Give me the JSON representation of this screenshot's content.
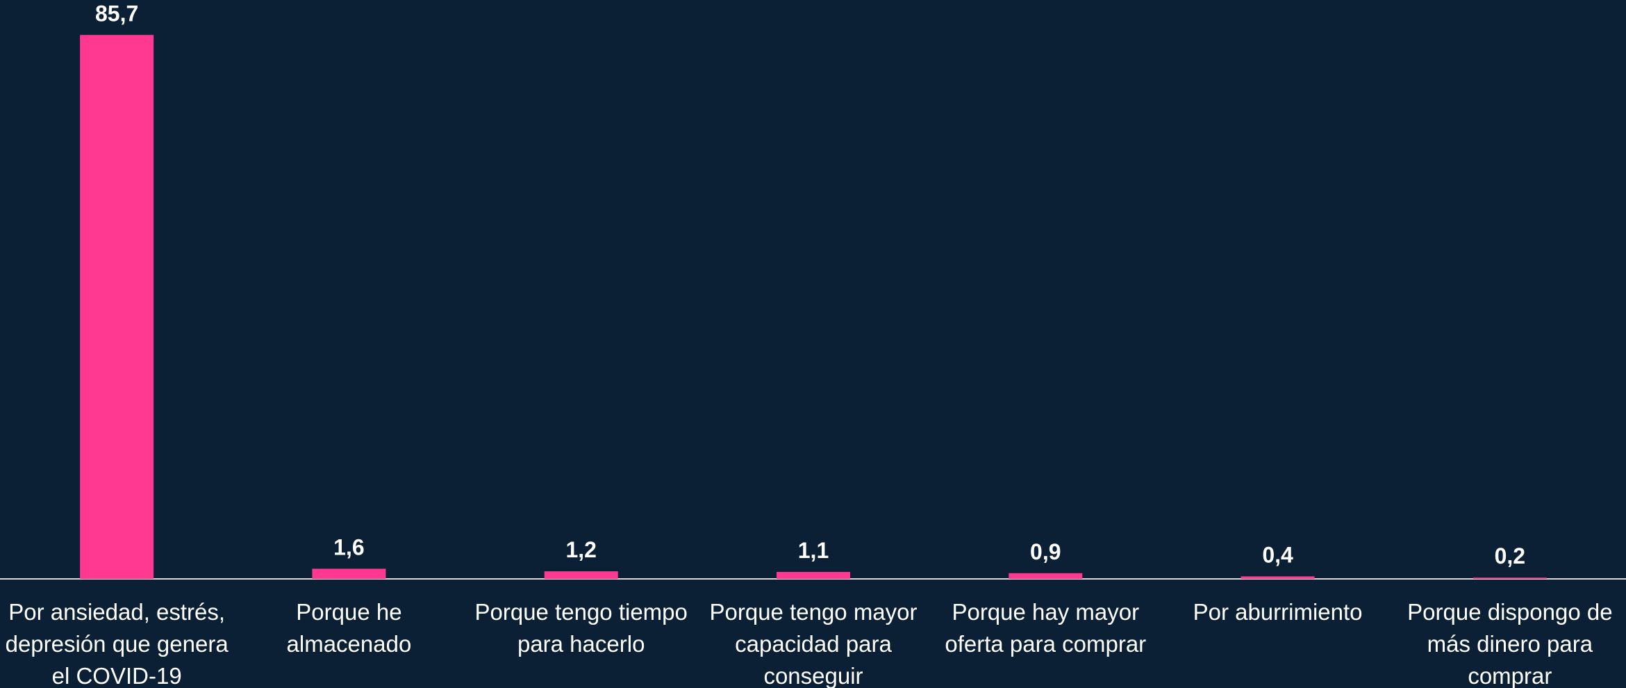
{
  "chart_data": {
    "type": "bar",
    "categories": [
      "Por ansiedad, estrés, depresión que genera el COVID-19",
      "Porque he almacenado",
      "Porque tengo tiempo para hacerlo",
      "Porque tengo mayor capacidad para conseguir",
      "Porque hay mayor oferta para comprar",
      "Por aburrimiento",
      "Porque dispongo de más dinero para comprar"
    ],
    "values": [
      85.7,
      1.6,
      1.2,
      1.1,
      0.9,
      0.4,
      0.2
    ],
    "value_labels": [
      "85,7",
      "1,6",
      "1,2",
      "1,1",
      "0,9",
      "0,4",
      "0,2"
    ],
    "color": "#ff3891",
    "ylim": [
      0,
      90
    ]
  }
}
